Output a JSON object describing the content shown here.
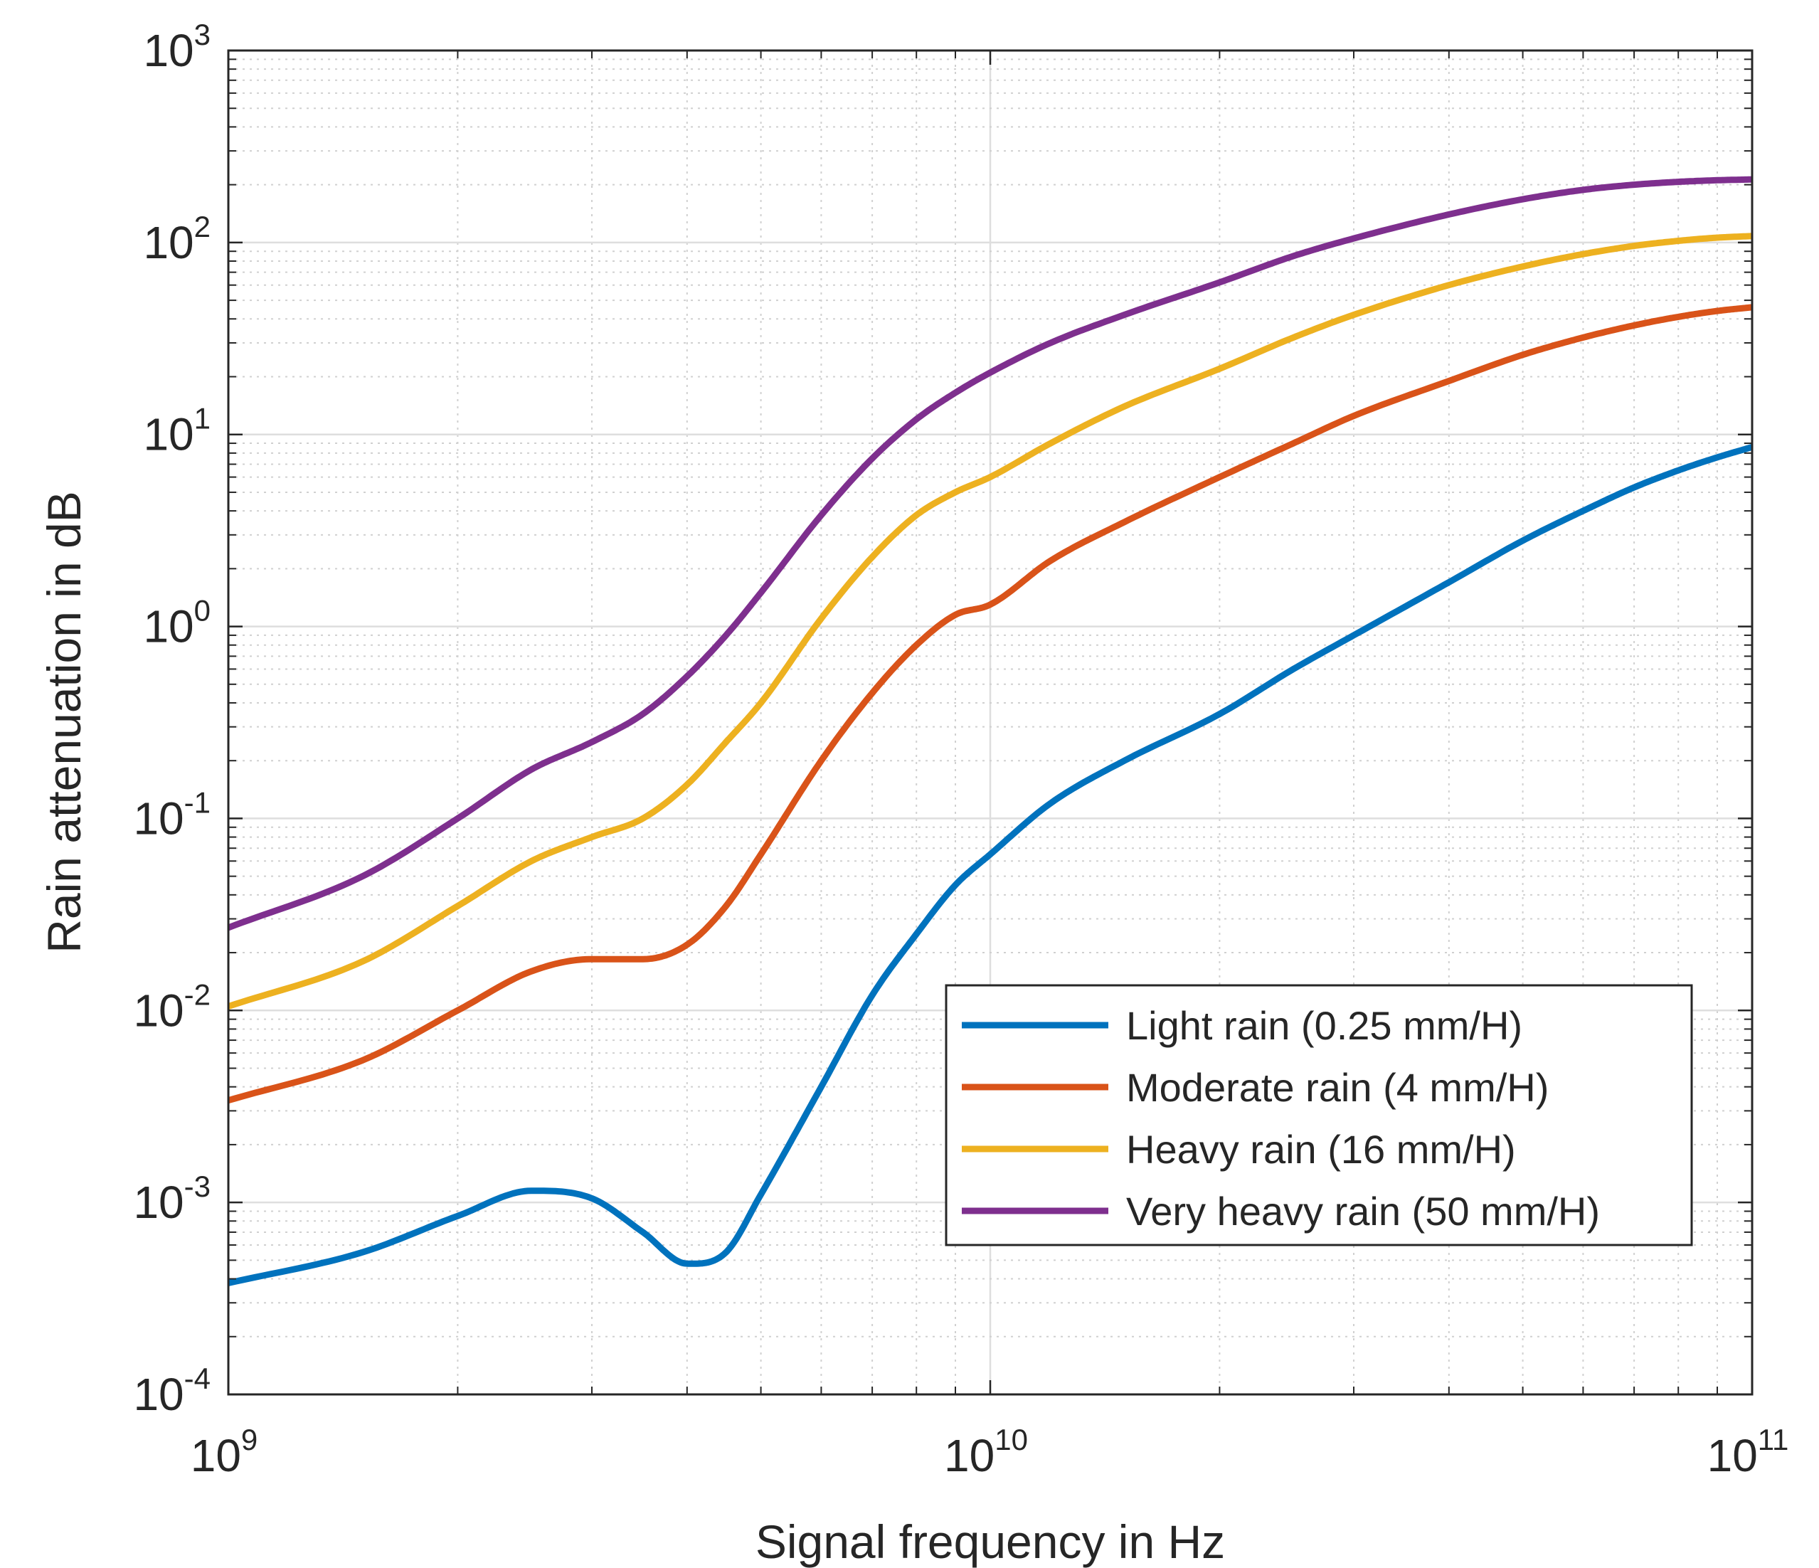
{
  "chart_data": {
    "type": "line",
    "title": "",
    "xlabel": "Signal frequency in Hz",
    "ylabel": "Rain attenuation in dB",
    "xscale": "log",
    "yscale": "log",
    "xlim": [
      1000000000.0,
      100000000000.0
    ],
    "ylim": [
      0.0001,
      1000.0
    ],
    "grid": true,
    "minor_grid": true,
    "legend_position": "lower-right",
    "x_ticks": [
      {
        "base": "10",
        "exp": "9"
      },
      {
        "base": "10",
        "exp": "10"
      },
      {
        "base": "10",
        "exp": "11"
      }
    ],
    "y_ticks": [
      {
        "base": "10",
        "exp": "-4"
      },
      {
        "base": "10",
        "exp": "-3"
      },
      {
        "base": "10",
        "exp": "-2"
      },
      {
        "base": "10",
        "exp": "-1"
      },
      {
        "base": "10",
        "exp": "0"
      },
      {
        "base": "10",
        "exp": "1"
      },
      {
        "base": "10",
        "exp": "2"
      },
      {
        "base": "10",
        "exp": "3"
      }
    ],
    "x": [
      1000000000.0,
      1500000000.0,
      2000000000.0,
      2500000000.0,
      3000000000.0,
      3500000000.0,
      4000000000.0,
      4500000000.0,
      5000000000.0,
      6000000000.0,
      7000000000.0,
      8000000000.0,
      9000000000.0,
      10000000000.0,
      12000000000.0,
      15000000000.0,
      20000000000.0,
      25000000000.0,
      30000000000.0,
      40000000000.0,
      50000000000.0,
      60000000000.0,
      70000000000.0,
      80000000000.0,
      90000000000.0,
      100000000000.0
    ],
    "series": [
      {
        "name": "Light rain (0.25 mm/H)",
        "color": "#0072BD",
        "values": [
          0.00038,
          0.00055,
          0.00085,
          0.00115,
          0.00105,
          0.0007,
          0.00048,
          0.00055,
          0.0011,
          0.004,
          0.012,
          0.025,
          0.045,
          0.065,
          0.12,
          0.2,
          0.35,
          0.6,
          0.9,
          1.7,
          2.8,
          4.0,
          5.3,
          6.5,
          7.6,
          8.6
        ]
      },
      {
        "name": "Moderate rain (4 mm/H)",
        "color": "#D95319",
        "values": [
          0.0034,
          0.0055,
          0.01,
          0.016,
          0.0185,
          0.0185,
          0.022,
          0.035,
          0.065,
          0.2,
          0.45,
          0.8,
          1.15,
          1.3,
          2.2,
          3.5,
          6.0,
          9.0,
          12.5,
          19.0,
          26.0,
          32.0,
          37.0,
          41.0,
          44.0,
          46.0
        ]
      },
      {
        "name": "Heavy rain (16 mm/H)",
        "color": "#EDB120",
        "values": [
          0.0105,
          0.018,
          0.035,
          0.06,
          0.08,
          0.1,
          0.15,
          0.25,
          0.4,
          1.1,
          2.3,
          3.8,
          5.0,
          6.0,
          9.0,
          14.0,
          22.0,
          32.0,
          42.0,
          60.0,
          75.0,
          87.0,
          96.0,
          102.0,
          106.0,
          108.0
        ]
      },
      {
        "name": "Very heavy rain (50 mm/H)",
        "color": "#7E2F8E",
        "values": [
          0.027,
          0.05,
          0.1,
          0.18,
          0.25,
          0.35,
          0.55,
          0.9,
          1.5,
          3.8,
          7.5,
          12.0,
          16.5,
          21.0,
          30.0,
          42.0,
          62.0,
          85.0,
          105.0,
          140.0,
          168.0,
          188.0,
          200.0,
          207.0,
          211.0,
          213.0
        ]
      }
    ]
  }
}
